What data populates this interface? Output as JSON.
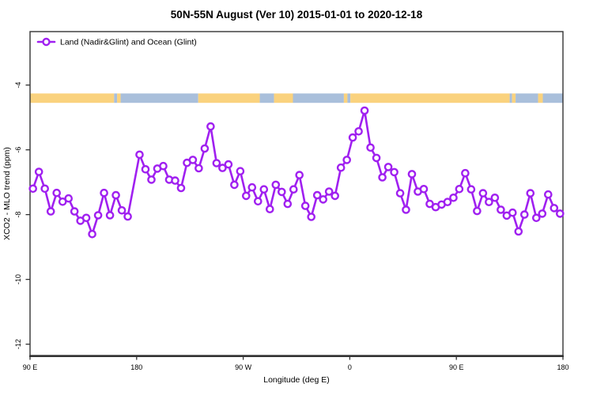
{
  "title": "50N-55N August (Ver 10)   2015-01-01 to 2020-12-18",
  "legend": {
    "label": "Land (Nadir&Glint) and Ocean (Glint)"
  },
  "axes": {
    "x_label": "Longitude (deg E)",
    "y_label": "XCO2 - MLO trend (ppm)"
  },
  "colors": {
    "series": "#A020F0",
    "box": "#333333",
    "land": "#FAD27E",
    "ocean": "#A9BFDB"
  },
  "chart_data": {
    "type": "line",
    "title": "50N-55N August (Ver 10)   2015-01-01 to 2020-12-18",
    "xlabel": "Longitude (deg E)",
    "ylabel": "XCO2 - MLO trend (ppm)",
    "xlim": [
      90,
      540
    ],
    "ylim": [
      -12.35,
      -2.35
    ],
    "grid": false,
    "legend_position": "top-left",
    "x_ticks": [
      {
        "pos": 90,
        "label": "90 E"
      },
      {
        "pos": 180,
        "label": "180"
      },
      {
        "pos": 270,
        "label": "90 W"
      },
      {
        "pos": 360,
        "label": "0"
      },
      {
        "pos": 450,
        "label": "90 E"
      },
      {
        "pos": 540,
        "label": "180"
      }
    ],
    "y_ticks": [
      {
        "value": -4,
        "label": "-4"
      },
      {
        "value": -6,
        "label": "-6"
      },
      {
        "value": -8,
        "label": "-8"
      },
      {
        "value": -10,
        "label": "-10"
      },
      {
        "value": -12,
        "label": "-12"
      }
    ],
    "series": [
      {
        "name": "Land (Nadir&Glint) and Ocean (Glint)",
        "color": "#A020F0",
        "marker": "open-circle",
        "points": [
          [
            92.5,
            -7.2
          ],
          [
            97.5,
            -6.68
          ],
          [
            102.5,
            -7.2
          ],
          [
            107.5,
            -7.9
          ],
          [
            112.5,
            -7.33
          ],
          [
            117.5,
            -7.6
          ],
          [
            122.5,
            -7.5
          ],
          [
            127.5,
            -7.9
          ],
          [
            132.5,
            -8.19
          ],
          [
            137.5,
            -8.1
          ],
          [
            142.5,
            -8.6
          ],
          [
            147.5,
            -8.02
          ],
          [
            152.5,
            -7.33
          ],
          [
            157.5,
            -8.02
          ],
          [
            162.5,
            -7.4
          ],
          [
            167.5,
            -7.87
          ],
          [
            172.5,
            -8.06
          ],
          [
            182.5,
            -6.15
          ],
          [
            187.5,
            -6.6
          ],
          [
            192.5,
            -6.92
          ],
          [
            197.5,
            -6.58
          ],
          [
            202.5,
            -6.5
          ],
          [
            207.5,
            -6.92
          ],
          [
            212.5,
            -6.95
          ],
          [
            217.5,
            -7.18
          ],
          [
            222.5,
            -6.4
          ],
          [
            227.5,
            -6.31
          ],
          [
            232.5,
            -6.57
          ],
          [
            237.5,
            -5.96
          ],
          [
            242.5,
            -5.28
          ],
          [
            247.5,
            -6.41
          ],
          [
            252.5,
            -6.56
          ],
          [
            257.5,
            -6.45
          ],
          [
            262.5,
            -7.08
          ],
          [
            267.5,
            -6.66
          ],
          [
            272.5,
            -7.42
          ],
          [
            277.5,
            -7.16
          ],
          [
            282.5,
            -7.59
          ],
          [
            287.5,
            -7.22
          ],
          [
            292.5,
            -7.83
          ],
          [
            297.5,
            -7.08
          ],
          [
            302.5,
            -7.3
          ],
          [
            307.5,
            -7.67
          ],
          [
            312.5,
            -7.22
          ],
          [
            317.5,
            -6.78
          ],
          [
            322.5,
            -7.73
          ],
          [
            327.5,
            -8.07
          ],
          [
            332.5,
            -7.4
          ],
          [
            337.5,
            -7.53
          ],
          [
            342.5,
            -7.29
          ],
          [
            347.5,
            -7.42
          ],
          [
            352.5,
            -6.55
          ],
          [
            357.5,
            -6.31
          ],
          [
            362.5,
            -5.62
          ],
          [
            367.5,
            -5.43
          ],
          [
            372.5,
            -4.79
          ],
          [
            377.5,
            -5.93
          ],
          [
            382.5,
            -6.25
          ],
          [
            387.5,
            -6.85
          ],
          [
            392.5,
            -6.53
          ],
          [
            397.5,
            -6.69
          ],
          [
            402.5,
            -7.34
          ],
          [
            407.5,
            -7.85
          ],
          [
            412.5,
            -6.75
          ],
          [
            417.5,
            -7.29
          ],
          [
            422.5,
            -7.21
          ],
          [
            427.5,
            -7.67
          ],
          [
            432.5,
            -7.77
          ],
          [
            437.5,
            -7.69
          ],
          [
            442.5,
            -7.61
          ],
          [
            447.5,
            -7.48
          ],
          [
            452.5,
            -7.21
          ],
          [
            457.5,
            -6.72
          ],
          [
            462.5,
            -7.22
          ],
          [
            467.5,
            -7.89
          ],
          [
            472.5,
            -7.34
          ],
          [
            477.5,
            -7.61
          ],
          [
            482.5,
            -7.48
          ],
          [
            487.5,
            -7.85
          ],
          [
            492.5,
            -8.03
          ],
          [
            497.5,
            -7.94
          ],
          [
            502.5,
            -8.52
          ],
          [
            507.5,
            -8.0
          ],
          [
            512.5,
            -7.34
          ],
          [
            517.5,
            -8.1
          ],
          [
            522.5,
            -7.97
          ],
          [
            527.5,
            -7.38
          ],
          [
            532.5,
            -7.8
          ],
          [
            537.5,
            -7.97
          ]
        ]
      }
    ],
    "map_band": {
      "description": "land/ocean strip along 50N-55N",
      "value_range": [
        -4.26,
        -4.55
      ],
      "land_color": "#FAD27E",
      "ocean_color": "#A9BFDB",
      "segments": [
        {
          "from": 90,
          "to": 161,
          "type": "land"
        },
        {
          "from": 161,
          "to": 163.5,
          "type": "ocean"
        },
        {
          "from": 163.5,
          "to": 166.5,
          "type": "land"
        },
        {
          "from": 166.5,
          "to": 232,
          "type": "ocean"
        },
        {
          "from": 232,
          "to": 284,
          "type": "land"
        },
        {
          "from": 284,
          "to": 296,
          "type": "ocean"
        },
        {
          "from": 296,
          "to": 312,
          "type": "land"
        },
        {
          "from": 312,
          "to": 355,
          "type": "ocean"
        },
        {
          "from": 355,
          "to": 358,
          "type": "land"
        },
        {
          "from": 358,
          "to": 360.5,
          "type": "ocean"
        },
        {
          "from": 360.5,
          "to": 495,
          "type": "land"
        },
        {
          "from": 495,
          "to": 497,
          "type": "ocean"
        },
        {
          "from": 497,
          "to": 500,
          "type": "land"
        },
        {
          "from": 500,
          "to": 519,
          "type": "ocean"
        },
        {
          "from": 519,
          "to": 523,
          "type": "land"
        },
        {
          "from": 523,
          "to": 540,
          "type": "ocean"
        }
      ]
    }
  }
}
